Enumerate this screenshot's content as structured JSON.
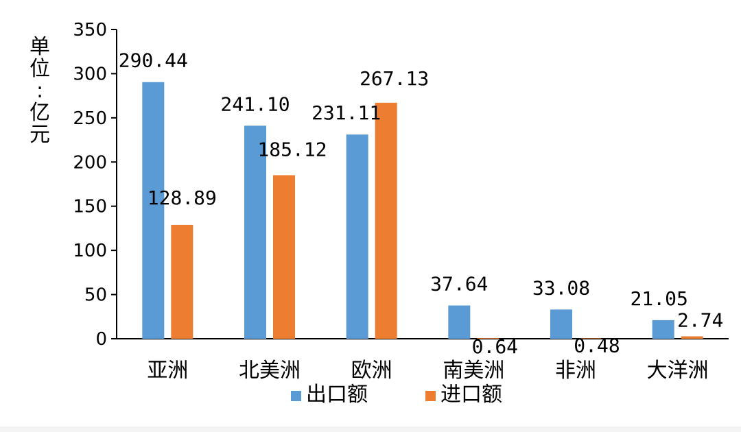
{
  "chart_data": {
    "type": "bar",
    "title": "",
    "ylabel": "单位：亿元",
    "xlabel": "",
    "ylim": [
      0,
      350
    ],
    "yticks": [
      0,
      50,
      100,
      150,
      200,
      250,
      300,
      350
    ],
    "grid": false,
    "legend_position": "bottom",
    "categories": [
      "亚洲",
      "北美洲",
      "欧洲",
      "南美洲",
      "非洲",
      "大洋洲"
    ],
    "series": [
      {
        "name": "出口额",
        "color": "#5B9BD5",
        "values": [
          290.44,
          241.1,
          231.11,
          37.64,
          33.08,
          21.05
        ],
        "labels": [
          "290.44",
          "241.10",
          "231.11",
          "37.64",
          "33.08",
          "21.05"
        ]
      },
      {
        "name": "进口额",
        "color": "#ED7D31",
        "values": [
          128.89,
          185.12,
          267.13,
          0.64,
          0.48,
          2.74
        ],
        "labels": [
          "128.89",
          "185.12",
          "267.13",
          "0.64",
          "0.48",
          "2.74"
        ]
      }
    ]
  }
}
